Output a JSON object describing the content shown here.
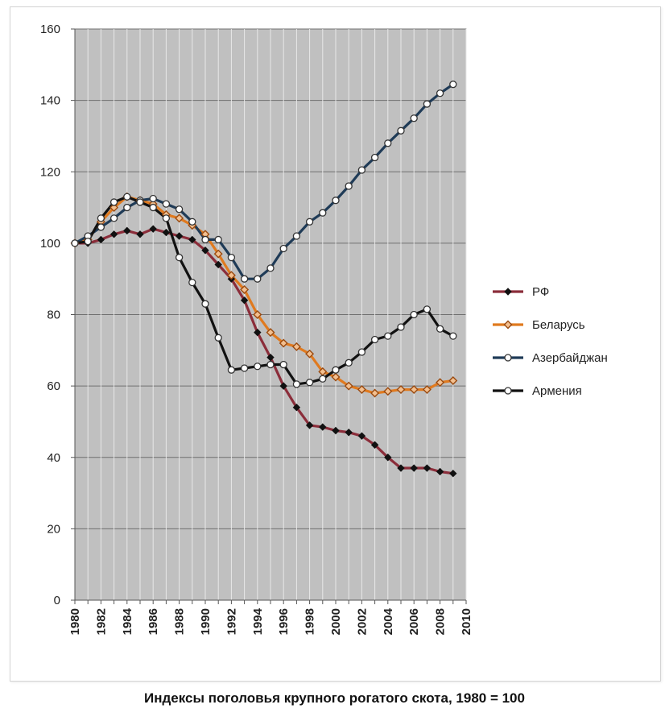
{
  "chart_data": {
    "type": "line",
    "title": "Индексы поголовья крупного рогатого скота, 1980 = 100",
    "xlabel": "",
    "ylabel": "",
    "xlim": [
      1980,
      2010
    ],
    "ylim": [
      0,
      160
    ],
    "x_ticks": [
      1980,
      1982,
      1984,
      1986,
      1988,
      1990,
      1992,
      1994,
      1996,
      1998,
      2000,
      2002,
      2004,
      2006,
      2008,
      2010
    ],
    "y_ticks": [
      0,
      20,
      40,
      60,
      80,
      100,
      120,
      140,
      160
    ],
    "grid": true,
    "legend_position": "right",
    "x": [
      1980,
      1981,
      1982,
      1983,
      1984,
      1985,
      1986,
      1987,
      1988,
      1989,
      1990,
      1991,
      1992,
      1993,
      1994,
      1995,
      1996,
      1997,
      1998,
      1999,
      2000,
      2001,
      2002,
      2003,
      2004,
      2005,
      2006,
      2007,
      2008,
      2009
    ],
    "series": [
      {
        "name": "РФ",
        "color": "#8b2d3a",
        "marker": "diamond-filled",
        "values": [
          100,
          100,
          101,
          102.5,
          103.5,
          102.5,
          104,
          103,
          102,
          101,
          98,
          94,
          90,
          84,
          75,
          68,
          60,
          54,
          49,
          48.5,
          47.5,
          47,
          46,
          43.5,
          40,
          37,
          37,
          37,
          36,
          35.5
        ]
      },
      {
        "name": "Беларусь",
        "color": "#e07a1f",
        "marker": "diamond-hollow",
        "values": [
          100,
          101,
          106,
          110,
          113,
          112,
          111,
          108,
          107,
          105,
          102.5,
          97,
          91,
          87,
          80,
          75,
          72,
          71,
          69,
          64,
          62.5,
          60,
          59,
          58,
          58.5,
          59,
          59,
          59,
          61,
          61.5
        ]
      },
      {
        "name": "Азербайджан",
        "color": "#1f3b57",
        "marker": "circle-hollow",
        "values": [
          100,
          102,
          104.5,
          107,
          110,
          112,
          112.5,
          111,
          109.5,
          106,
          101,
          101,
          96,
          90,
          90,
          93,
          98.5,
          102,
          106,
          108.5,
          112,
          116,
          120.5,
          124,
          128,
          131.5,
          135,
          139,
          142,
          144.5
        ]
      },
      {
        "name": "Армения",
        "color": "#111111",
        "marker": "circle-hollow",
        "values": [
          100,
          100.5,
          107,
          111.5,
          113,
          111.5,
          110,
          107,
          96,
          89,
          83,
          73.5,
          64.5,
          65,
          65.5,
          66,
          66,
          60.5,
          61,
          62,
          64.5,
          66.5,
          69.5,
          73,
          74,
          76.5,
          80,
          81.5,
          76,
          74
        ]
      }
    ]
  }
}
